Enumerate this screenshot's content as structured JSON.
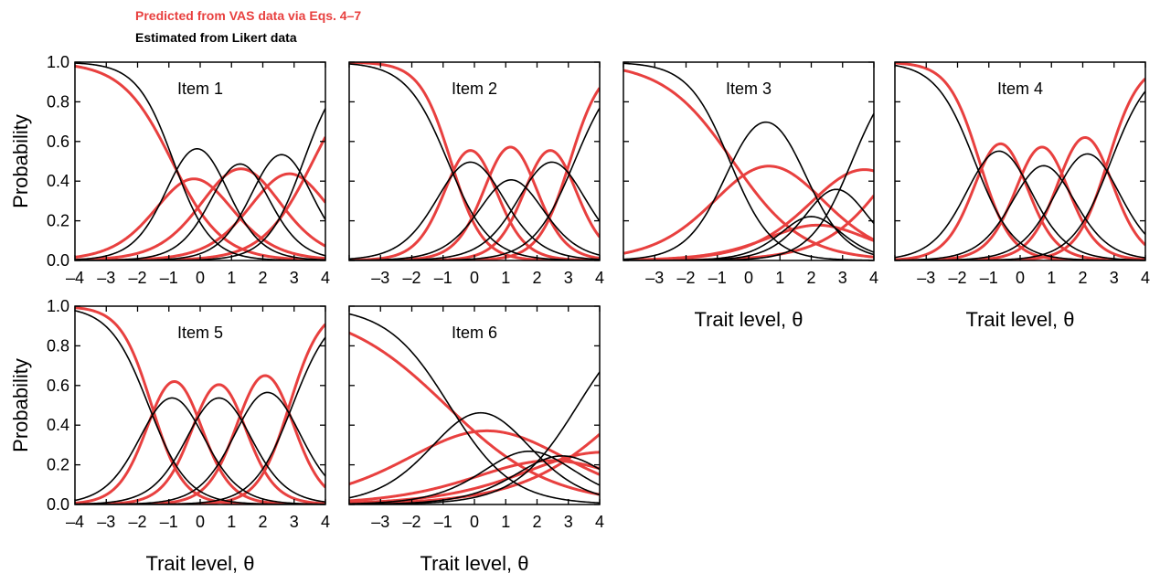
{
  "legend": {
    "predicted_label": "Predicted from VAS data via Eqs. 4–7",
    "estimated_label": "Estimated from Likert data",
    "predicted_color": "#e8403f",
    "estimated_color": "#000000"
  },
  "axes": {
    "ylabel": "Probability",
    "xlabel": "Trait level, θ",
    "x_ticks": [
      "–4",
      "–3",
      "–2",
      "–1",
      "0",
      "1",
      "2",
      "3",
      "4"
    ],
    "y_ticks": [
      "0.0",
      "0.2",
      "0.4",
      "0.6",
      "0.8",
      "1.0"
    ]
  },
  "chart_data": [
    {
      "type": "line",
      "title": "Item 1",
      "xlim": [
        -4,
        4
      ],
      "ylim": [
        0,
        1
      ],
      "series": [
        {
          "group": "estimated",
          "a": 1.7,
          "thresholds": [
            -0.85,
            0.65,
            1.9,
            3.3
          ]
        },
        {
          "group": "predicted",
          "a": 1.25,
          "thresholds": [
            -0.9,
            0.5,
            2.1,
            3.6
          ]
        }
      ]
    },
    {
      "type": "line",
      "title": "Item 2",
      "xlim": [
        -4,
        4
      ],
      "ylim": [
        0,
        1
      ],
      "series": [
        {
          "group": "estimated",
          "a": 1.5,
          "thresholds": [
            -0.85,
            0.6,
            1.75,
            3.2
          ]
        },
        {
          "group": "predicted",
          "a": 2.0,
          "thresholds": [
            -0.75,
            0.5,
            1.8,
            3.05
          ]
        }
      ]
    },
    {
      "type": "line",
      "title": "Item 3",
      "xlim": [
        -4,
        4
      ],
      "ylim": [
        0,
        1
      ],
      "series": [
        {
          "group": "estimated",
          "a": 1.5,
          "thresholds": [
            -0.6,
            1.7,
            2.3,
            3.3
          ]
        },
        {
          "group": "predicted",
          "a": 0.9,
          "thresholds": [
            -0.5,
            1.8,
            2.6,
            4.8
          ]
        }
      ]
    },
    {
      "type": "line",
      "title": "Item 4",
      "xlim": [
        -4,
        4
      ],
      "ylim": [
        0,
        1
      ],
      "series": [
        {
          "group": "estimated",
          "a": 1.6,
          "thresholds": [
            -1.45,
            0.1,
            1.4,
            2.9
          ]
        },
        {
          "group": "predicted",
          "a": 2.0,
          "thresholds": [
            -1.3,
            0.05,
            1.35,
            2.8
          ]
        }
      ]
    },
    {
      "type": "line",
      "title": "Item 5",
      "xlim": [
        -4,
        4
      ],
      "ylim": [
        0,
        1
      ],
      "series": [
        {
          "group": "estimated",
          "a": 1.6,
          "thresholds": [
            -1.65,
            -0.15,
            1.35,
            2.95
          ]
        },
        {
          "group": "predicted",
          "a": 2.0,
          "thresholds": [
            -1.55,
            -0.1,
            1.3,
            2.85
          ]
        }
      ]
    },
    {
      "type": "line",
      "title": "Item 6",
      "xlim": [
        -4,
        4
      ],
      "ylim": [
        0,
        1
      ],
      "series": [
        {
          "group": "estimated",
          "a": 1.0,
          "thresholds": [
            -0.8,
            1.2,
            2.3,
            3.3
          ]
        },
        {
          "group": "predicted",
          "a": 0.6,
          "thresholds": [
            -0.9,
            1.7,
            3.2,
            5.0
          ]
        }
      ]
    }
  ]
}
